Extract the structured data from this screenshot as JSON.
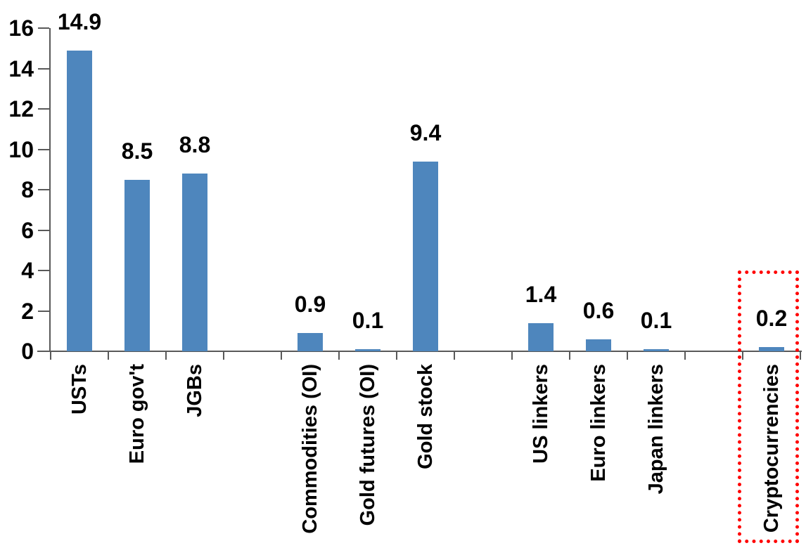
{
  "chart_data": {
    "type": "bar",
    "categories": [
      "USTs",
      "Euro gov't",
      "JGBs",
      "Commodities (OI)",
      "Gold futures (OI)",
      "Gold stock",
      "US linkers",
      "Euro linkers",
      "Japan linkers",
      "Cryptocurrencies"
    ],
    "values": [
      14.9,
      8.5,
      8.8,
      0.9,
      0.1,
      9.4,
      1.4,
      0.6,
      0.1,
      0.2
    ],
    "value_labels": [
      "14.9",
      "8.5",
      "8.8",
      "0.9",
      "0.1",
      "9.4",
      "1.4",
      "0.6",
      "0.1",
      "0.2"
    ],
    "yticks": [
      0,
      2,
      4,
      6,
      8,
      10,
      12,
      14,
      16
    ],
    "ylim": [
      0,
      16
    ],
    "grid": false,
    "legend": "none",
    "title": "",
    "xlabel": "",
    "ylabel": "",
    "bar_color": "#4E86BD",
    "axis_color": "#595959",
    "text_color": "#000000",
    "group_gap_after_indices": [
      2,
      5,
      8
    ],
    "highlight": {
      "category": "Cryptocurrencies",
      "style": "red-dotted-box",
      "color": "#FF0000"
    }
  }
}
